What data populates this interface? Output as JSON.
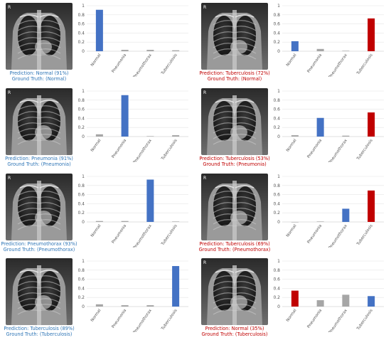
{
  "legend_colors": {
    "correct": "#4472c4",
    "incorrect": "#c00000",
    "other": "#a6a6a6"
  },
  "panels": [
    {
      "tag": "R",
      "prediction": "Prediction: Normal (91%)",
      "ground_truth": "Ground Truth: (Normal)",
      "caption_color": "#2e75b6",
      "highlight_color": "#4472c4"
    },
    {
      "tag": "R",
      "prediction": "Prediction: Tuberculosis (72%)",
      "ground_truth": "Ground Truth: (Normal)",
      "caption_color": "#c00000",
      "highlight_color": "#c00000"
    },
    {
      "tag": "R",
      "prediction": "Prediction: Pneumonia (91%)",
      "ground_truth": "Ground Truth: (Pneumonia)",
      "caption_color": "#2e75b6",
      "highlight_color": "#4472c4"
    },
    {
      "tag": "R",
      "prediction": "Prediction: Tuberculosis (53%)",
      "ground_truth": "Ground Truth: (Pneumonia)",
      "caption_color": "#c00000",
      "highlight_color": "#c00000"
    },
    {
      "tag": "R",
      "prediction": "Prediction: Pneumothorax (93%)",
      "ground_truth": "Ground Truth: (Pneumothorax)",
      "caption_color": "#2e75b6",
      "highlight_color": "#4472c4"
    },
    {
      "tag": "R",
      "prediction": "Prediction: Tuberculosis (69%)",
      "ground_truth": "Ground Truth: (Pneumothorax)",
      "caption_color": "#c00000",
      "highlight_color": "#c00000"
    },
    {
      "tag": "",
      "prediction": "Prediction: Tuberculosis (89%)",
      "ground_truth": "Ground Truth: (Tuberculosis)",
      "caption_color": "#2e75b6",
      "highlight_color": "#4472c4"
    },
    {
      "tag": "R",
      "prediction": "Prediction: Normal (35%)",
      "ground_truth": "Ground Truth: (Tuberculosis)",
      "caption_color": "#c00000",
      "highlight_color": "#c00000"
    }
  ],
  "chart_data": [
    {
      "type": "bar",
      "categories": [
        "Normal",
        "Pneumonia",
        "Pneumothorax",
        "Tuberculosis"
      ],
      "values": [
        0.91,
        0.03,
        0.03,
        0.02
      ],
      "highlight_index": 0,
      "ylim": [
        0,
        1
      ],
      "yticks": [
        "0",
        "0.2",
        "0.4",
        "0.6",
        "0.8",
        "1"
      ],
      "grid": true
    },
    {
      "type": "bar",
      "categories": [
        "Normal",
        "Pneumonia",
        "Pneumothorax",
        "Tuberculosis"
      ],
      "values": [
        0.22,
        0.05,
        0.01,
        0.72
      ],
      "highlight_index": 3,
      "normal_colored_index": 0,
      "ylim": [
        0,
        1
      ],
      "yticks": [
        "0",
        "0.2",
        "0.4",
        "0.6",
        "0.8",
        "1"
      ],
      "grid": true
    },
    {
      "type": "bar",
      "categories": [
        "Normal",
        "Pneumonia",
        "Pneumothorax",
        "Tuberculosis"
      ],
      "values": [
        0.05,
        0.91,
        0.01,
        0.03
      ],
      "highlight_index": 1,
      "ylim": [
        0,
        1
      ],
      "yticks": [
        "0",
        "0.2",
        "0.4",
        "0.6",
        "0.8",
        "1"
      ],
      "grid": true
    },
    {
      "type": "bar",
      "categories": [
        "Normal",
        "Pneumonia",
        "Pneumothorax",
        "Tuberculosis"
      ],
      "values": [
        0.03,
        0.41,
        0.02,
        0.53
      ],
      "highlight_index": 3,
      "normal_colored_index": 1,
      "ylim": [
        0,
        1
      ],
      "yticks": [
        "0",
        "0.2",
        "0.4",
        "0.6",
        "0.8",
        "1"
      ],
      "grid": true
    },
    {
      "type": "bar",
      "categories": [
        "Normal",
        "Pneumonia",
        "Pneumothorax",
        "Tuberculosis"
      ],
      "values": [
        0.02,
        0.02,
        0.93,
        0.01
      ],
      "highlight_index": 2,
      "ylim": [
        0,
        1
      ],
      "yticks": [
        "0",
        "0.2",
        "0.4",
        "0.6",
        "0.8",
        "1"
      ],
      "grid": true
    },
    {
      "type": "bar",
      "categories": [
        "Normal",
        "Pneumonia",
        "Pneumothorax",
        "Tuberculosis"
      ],
      "values": [
        0.0,
        0.01,
        0.29,
        0.69
      ],
      "highlight_index": 3,
      "normal_colored_index": 2,
      "ylim": [
        0,
        1
      ],
      "yticks": [
        "0",
        "0.2",
        "0.4",
        "0.6",
        "0.8",
        "1"
      ],
      "grid": true
    },
    {
      "type": "bar",
      "categories": [
        "Normal",
        "Pneumonia",
        "Pneumothorax",
        "Tuberculosis"
      ],
      "values": [
        0.05,
        0.03,
        0.03,
        0.89
      ],
      "highlight_index": 3,
      "ylim": [
        0,
        1
      ],
      "yticks": [
        "0",
        "0.2",
        "0.4",
        "0.6",
        "0.8",
        "1"
      ],
      "grid": true
    },
    {
      "type": "bar",
      "categories": [
        "Normal",
        "Pneumonia",
        "Pneumothorax",
        "Tuberculosis"
      ],
      "values": [
        0.35,
        0.14,
        0.26,
        0.23
      ],
      "highlight_index": 0,
      "normal_colored_index": 3,
      "ylim": [
        0,
        1
      ],
      "yticks": [
        "0",
        "0.2",
        "0.4",
        "0.6",
        "0.8",
        "1"
      ],
      "grid": true
    }
  ]
}
